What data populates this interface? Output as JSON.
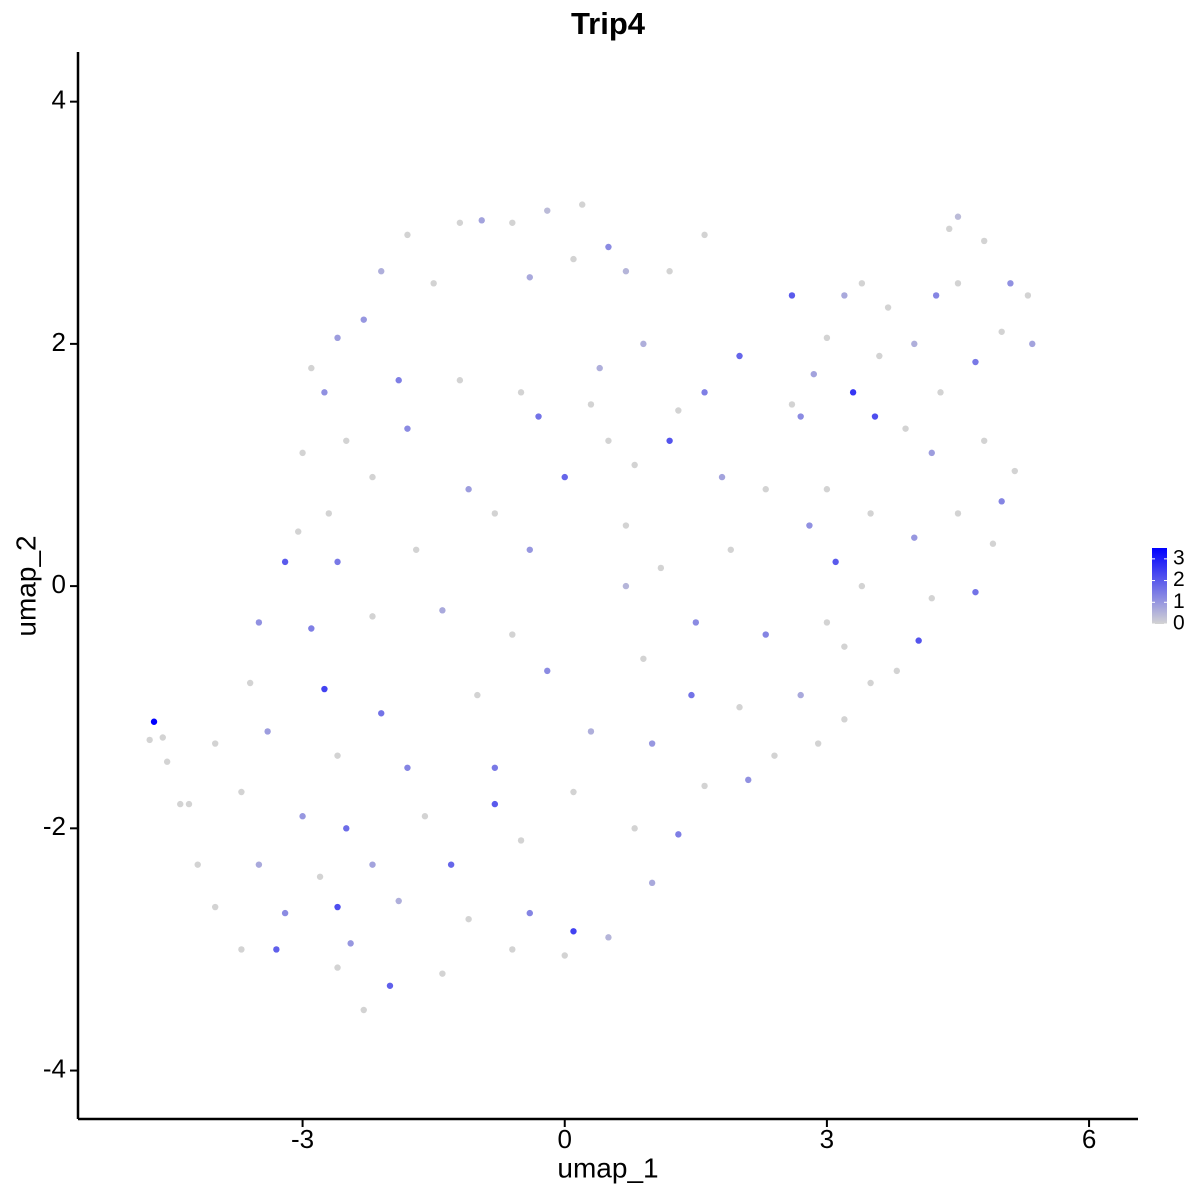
{
  "chart_data": {
    "type": "scatter",
    "title": "Trip4",
    "x_label": "umap_1",
    "y_label": "umap_2",
    "xlim": [
      -5.57,
      6.56
    ],
    "ylim": [
      -4.4,
      4.41
    ],
    "xticks": [
      -3,
      0,
      3,
      6
    ],
    "yticks": [
      -4,
      -2,
      0,
      2,
      4
    ],
    "color_low": "#d3d3d3",
    "color_high": "#0000ff",
    "color_range": [
      0,
      3.5
    ],
    "colorbar_ticks": [
      0,
      1,
      2,
      3
    ],
    "points": [
      [
        -1.8,
        2.9,
        0
      ],
      [
        -1.2,
        3.0,
        0
      ],
      [
        -0.6,
        3.0,
        0
      ],
      [
        -0.2,
        3.1,
        0.4
      ],
      [
        0.2,
        3.15,
        0
      ],
      [
        -0.95,
        3.02,
        0.8
      ],
      [
        0.5,
        2.8,
        1.2
      ],
      [
        -2.1,
        2.6,
        0.6
      ],
      [
        -2.6,
        2.05,
        0.9
      ],
      [
        -2.3,
        2.2,
        1
      ],
      [
        -1.5,
        2.5,
        0
      ],
      [
        -0.4,
        2.55,
        0.7
      ],
      [
        0.1,
        2.7,
        0
      ],
      [
        0.7,
        2.6,
        0.5
      ],
      [
        -2.9,
        1.8,
        0
      ],
      [
        -2.75,
        1.6,
        1.1
      ],
      [
        -1.9,
        1.7,
        1.4
      ],
      [
        -1.2,
        1.7,
        0
      ],
      [
        -0.5,
        1.6,
        0
      ],
      [
        0.4,
        1.8,
        0.6
      ],
      [
        -2.5,
        1.2,
        0
      ],
      [
        -1.8,
        1.3,
        1.2
      ],
      [
        -0.3,
        1.4,
        1.6
      ],
      [
        0.5,
        1.2,
        0
      ],
      [
        -3.0,
        1.1,
        0
      ],
      [
        -2.2,
        0.9,
        0
      ],
      [
        -1.1,
        0.8,
        0.9
      ],
      [
        0.0,
        0.9,
        1.8
      ],
      [
        -2.7,
        0.6,
        0
      ],
      [
        -2.6,
        0.2,
        1.5
      ],
      [
        -1.7,
        0.3,
        0
      ],
      [
        -0.8,
        0.6,
        0
      ],
      [
        -0.4,
        0.3,
        1.0
      ],
      [
        -3.2,
        0.2,
        2.0
      ],
      [
        -3.05,
        0.45,
        0
      ],
      [
        0.7,
        0.5,
        0
      ],
      [
        -3.5,
        -0.3,
        1.1
      ],
      [
        -2.9,
        -0.35,
        1.4
      ],
      [
        -2.2,
        -0.25,
        0
      ],
      [
        -1.4,
        -0.2,
        0.7
      ],
      [
        -0.6,
        -0.4,
        0
      ],
      [
        -3.6,
        -0.8,
        0
      ],
      [
        -2.75,
        -0.85,
        2.4
      ],
      [
        -2.1,
        -1.05,
        1.6
      ],
      [
        -1.0,
        -0.9,
        0
      ],
      [
        -0.2,
        -0.7,
        1.2
      ],
      [
        -4.0,
        -1.3,
        0
      ],
      [
        -3.4,
        -1.2,
        0.9
      ],
      [
        -2.6,
        -1.4,
        0
      ],
      [
        -1.8,
        -1.5,
        1.3
      ],
      [
        -0.8,
        -1.5,
        1.5
      ],
      [
        0.3,
        -1.2,
        0.6
      ],
      [
        -4.3,
        -1.8,
        0
      ],
      [
        -3.7,
        -1.7,
        0
      ],
      [
        -3.0,
        -1.9,
        1.0
      ],
      [
        -2.5,
        -2.0,
        1.7
      ],
      [
        -1.6,
        -1.9,
        0
      ],
      [
        -0.8,
        -1.8,
        2.0
      ],
      [
        0.1,
        -1.7,
        0
      ],
      [
        -4.2,
        -2.3,
        0
      ],
      [
        -3.5,
        -2.3,
        0.7
      ],
      [
        -2.8,
        -2.4,
        0
      ],
      [
        -2.2,
        -2.3,
        0.8
      ],
      [
        -1.3,
        -2.3,
        1.8
      ],
      [
        -0.5,
        -2.1,
        0
      ],
      [
        -4.0,
        -2.65,
        0
      ],
      [
        -3.2,
        -2.7,
        1.2
      ],
      [
        -2.6,
        -2.65,
        2.2
      ],
      [
        -1.9,
        -2.6,
        0.6
      ],
      [
        -1.1,
        -2.75,
        0
      ],
      [
        -0.4,
        -2.7,
        1.3
      ],
      [
        0.1,
        -2.85,
        2.4
      ],
      [
        -3.7,
        -3.0,
        0
      ],
      [
        -3.3,
        -3.0,
        1.9
      ],
      [
        -2.6,
        -3.15,
        0
      ],
      [
        -2.45,
        -2.95,
        1
      ],
      [
        -2.0,
        -3.3,
        1.9
      ],
      [
        -2.3,
        -3.5,
        0
      ],
      [
        -1.4,
        -3.2,
        0
      ],
      [
        -0.6,
        -3.0,
        0
      ],
      [
        0.0,
        -3.05,
        0
      ],
      [
        0.5,
        -2.9,
        0.5
      ],
      [
        -4.75,
        -1.27,
        0
      ],
      [
        -4.7,
        -1.12,
        3.5
      ],
      [
        -4.6,
        -1.25,
        0
      ],
      [
        -4.55,
        -1.45,
        0
      ],
      [
        -4.4,
        -1.8,
        0
      ],
      [
        0.7,
        0.0,
        0.5
      ],
      [
        1.1,
        0.15,
        0
      ],
      [
        1.5,
        -0.3,
        1.2
      ],
      [
        0.9,
        -0.6,
        0
      ],
      [
        1.45,
        -0.9,
        1.6
      ],
      [
        2.0,
        -1.0,
        0
      ],
      [
        1.0,
        -1.3,
        1.0
      ],
      [
        1.6,
        -1.65,
        0
      ],
      [
        2.1,
        -1.6,
        1.1
      ],
      [
        0.8,
        -2.0,
        0
      ],
      [
        1.3,
        -2.05,
        1.4
      ],
      [
        1.0,
        -2.45,
        0.7
      ],
      [
        2.4,
        -1.4,
        0
      ],
      [
        2.9,
        -1.3,
        0
      ],
      [
        3.2,
        -1.1,
        0
      ],
      [
        2.7,
        -0.9,
        0.7
      ],
      [
        3.5,
        -0.8,
        0
      ],
      [
        3.0,
        -0.3,
        0
      ],
      [
        2.3,
        -0.4,
        1.3
      ],
      [
        1.9,
        0.3,
        0
      ],
      [
        2.3,
        0.8,
        0
      ],
      [
        1.8,
        0.9,
        0.8
      ],
      [
        1.2,
        1.2,
        2.1
      ],
      [
        0.8,
        1.0,
        0
      ],
      [
        1.6,
        1.6,
        1.4
      ],
      [
        2.0,
        1.9,
        1.8
      ],
      [
        2.6,
        1.5,
        0
      ],
      [
        1.3,
        1.45,
        0
      ],
      [
        0.3,
        1.5,
        0
      ],
      [
        0.9,
        2.0,
        0.6
      ],
      [
        1.6,
        2.9,
        0
      ],
      [
        1.2,
        2.6,
        0
      ],
      [
        2.7,
        1.4,
        1.2
      ],
      [
        3.0,
        2.05,
        0
      ],
      [
        3.2,
        2.4,
        0.7
      ],
      [
        3.3,
        1.6,
        2.6
      ],
      [
        3.7,
        2.3,
        0
      ],
      [
        4.0,
        2.0,
        0.6
      ],
      [
        4.5,
        2.5,
        0
      ],
      [
        4.4,
        2.95,
        0
      ],
      [
        4.5,
        3.05,
        0.4
      ],
      [
        4.8,
        2.85,
        0
      ],
      [
        5.1,
        2.5,
        1.1
      ],
      [
        5.3,
        2.4,
        0
      ],
      [
        5.35,
        2.0,
        0.8
      ],
      [
        5.0,
        2.1,
        0
      ],
      [
        4.7,
        1.85,
        1.5
      ],
      [
        4.3,
        1.6,
        0
      ],
      [
        3.9,
        1.3,
        0
      ],
      [
        3.55,
        1.4,
        2.2
      ],
      [
        4.2,
        1.1,
        0.9
      ],
      [
        4.8,
        1.2,
        0
      ],
      [
        5.15,
        0.95,
        0
      ],
      [
        5.0,
        0.7,
        1.3
      ],
      [
        4.5,
        0.6,
        0
      ],
      [
        4.0,
        0.4,
        1.0
      ],
      [
        3.5,
        0.6,
        0
      ],
      [
        3.0,
        0.8,
        0
      ],
      [
        3.1,
        0.2,
        2.0
      ],
      [
        3.4,
        0.0,
        0
      ],
      [
        4.2,
        -0.1,
        0
      ],
      [
        4.7,
        -0.05,
        1.6
      ],
      [
        4.9,
        0.35,
        0
      ],
      [
        4.05,
        -0.45,
        2.1
      ],
      [
        3.8,
        -0.7,
        0
      ],
      [
        3.2,
        -0.5,
        0
      ],
      [
        2.8,
        0.5,
        1.1
      ],
      [
        3.6,
        1.9,
        0
      ],
      [
        4.25,
        2.4,
        1.3
      ],
      [
        2.6,
        2.4,
        2.0
      ],
      [
        2.85,
        1.75,
        0.8
      ],
      [
        3.4,
        2.5,
        0
      ]
    ]
  }
}
